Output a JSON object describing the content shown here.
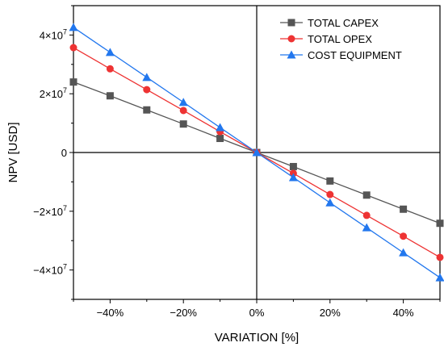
{
  "chart_data": {
    "type": "line",
    "title": "",
    "xlabel": "VARIATION [%]",
    "ylabel": "NPV [USD]",
    "x": [
      -50,
      -40,
      -30,
      -20,
      -10,
      0,
      10,
      20,
      30,
      40,
      50
    ],
    "xlim": [
      -50,
      50
    ],
    "ylim": [
      -50000000,
      50000000
    ],
    "xticks": [
      -40,
      -20,
      0,
      20,
      40
    ],
    "xtick_labels": [
      "−40%",
      "−20%",
      "0%",
      "20%",
      "40%"
    ],
    "yticks": [
      -40000000,
      -20000000,
      0,
      20000000,
      40000000
    ],
    "ytick_labels": [
      {
        "base": "−4×10",
        "exp": "7"
      },
      {
        "base": "−2×10",
        "exp": "7"
      },
      {
        "base": "0",
        "exp": ""
      },
      {
        "base": "2×10",
        "exp": "7"
      },
      {
        "base": "4×10",
        "exp": "7"
      }
    ],
    "grid": false,
    "legend_position": "top-right",
    "series": [
      {
        "name": "TOTAL CAPEX",
        "color": "#555555",
        "marker": "square",
        "values": [
          24000000,
          19300000,
          14500000,
          9700000,
          4800000,
          0,
          -4800000,
          -9700000,
          -14500000,
          -19300000,
          -24100000
        ]
      },
      {
        "name": "TOTAL OPEX",
        "color": "#ee3333",
        "marker": "circle",
        "values": [
          35700000,
          28500000,
          21400000,
          14300000,
          7100000,
          0,
          -7100000,
          -14300000,
          -21400000,
          -28500000,
          -35700000
        ]
      },
      {
        "name": "COST EQUIPMENT",
        "color": "#2277ee",
        "marker": "triangle",
        "values": [
          42600000,
          34100000,
          25600000,
          17100000,
          8500000,
          0,
          -8500000,
          -17100000,
          -25600000,
          -34100000,
          -42600000
        ]
      }
    ]
  }
}
